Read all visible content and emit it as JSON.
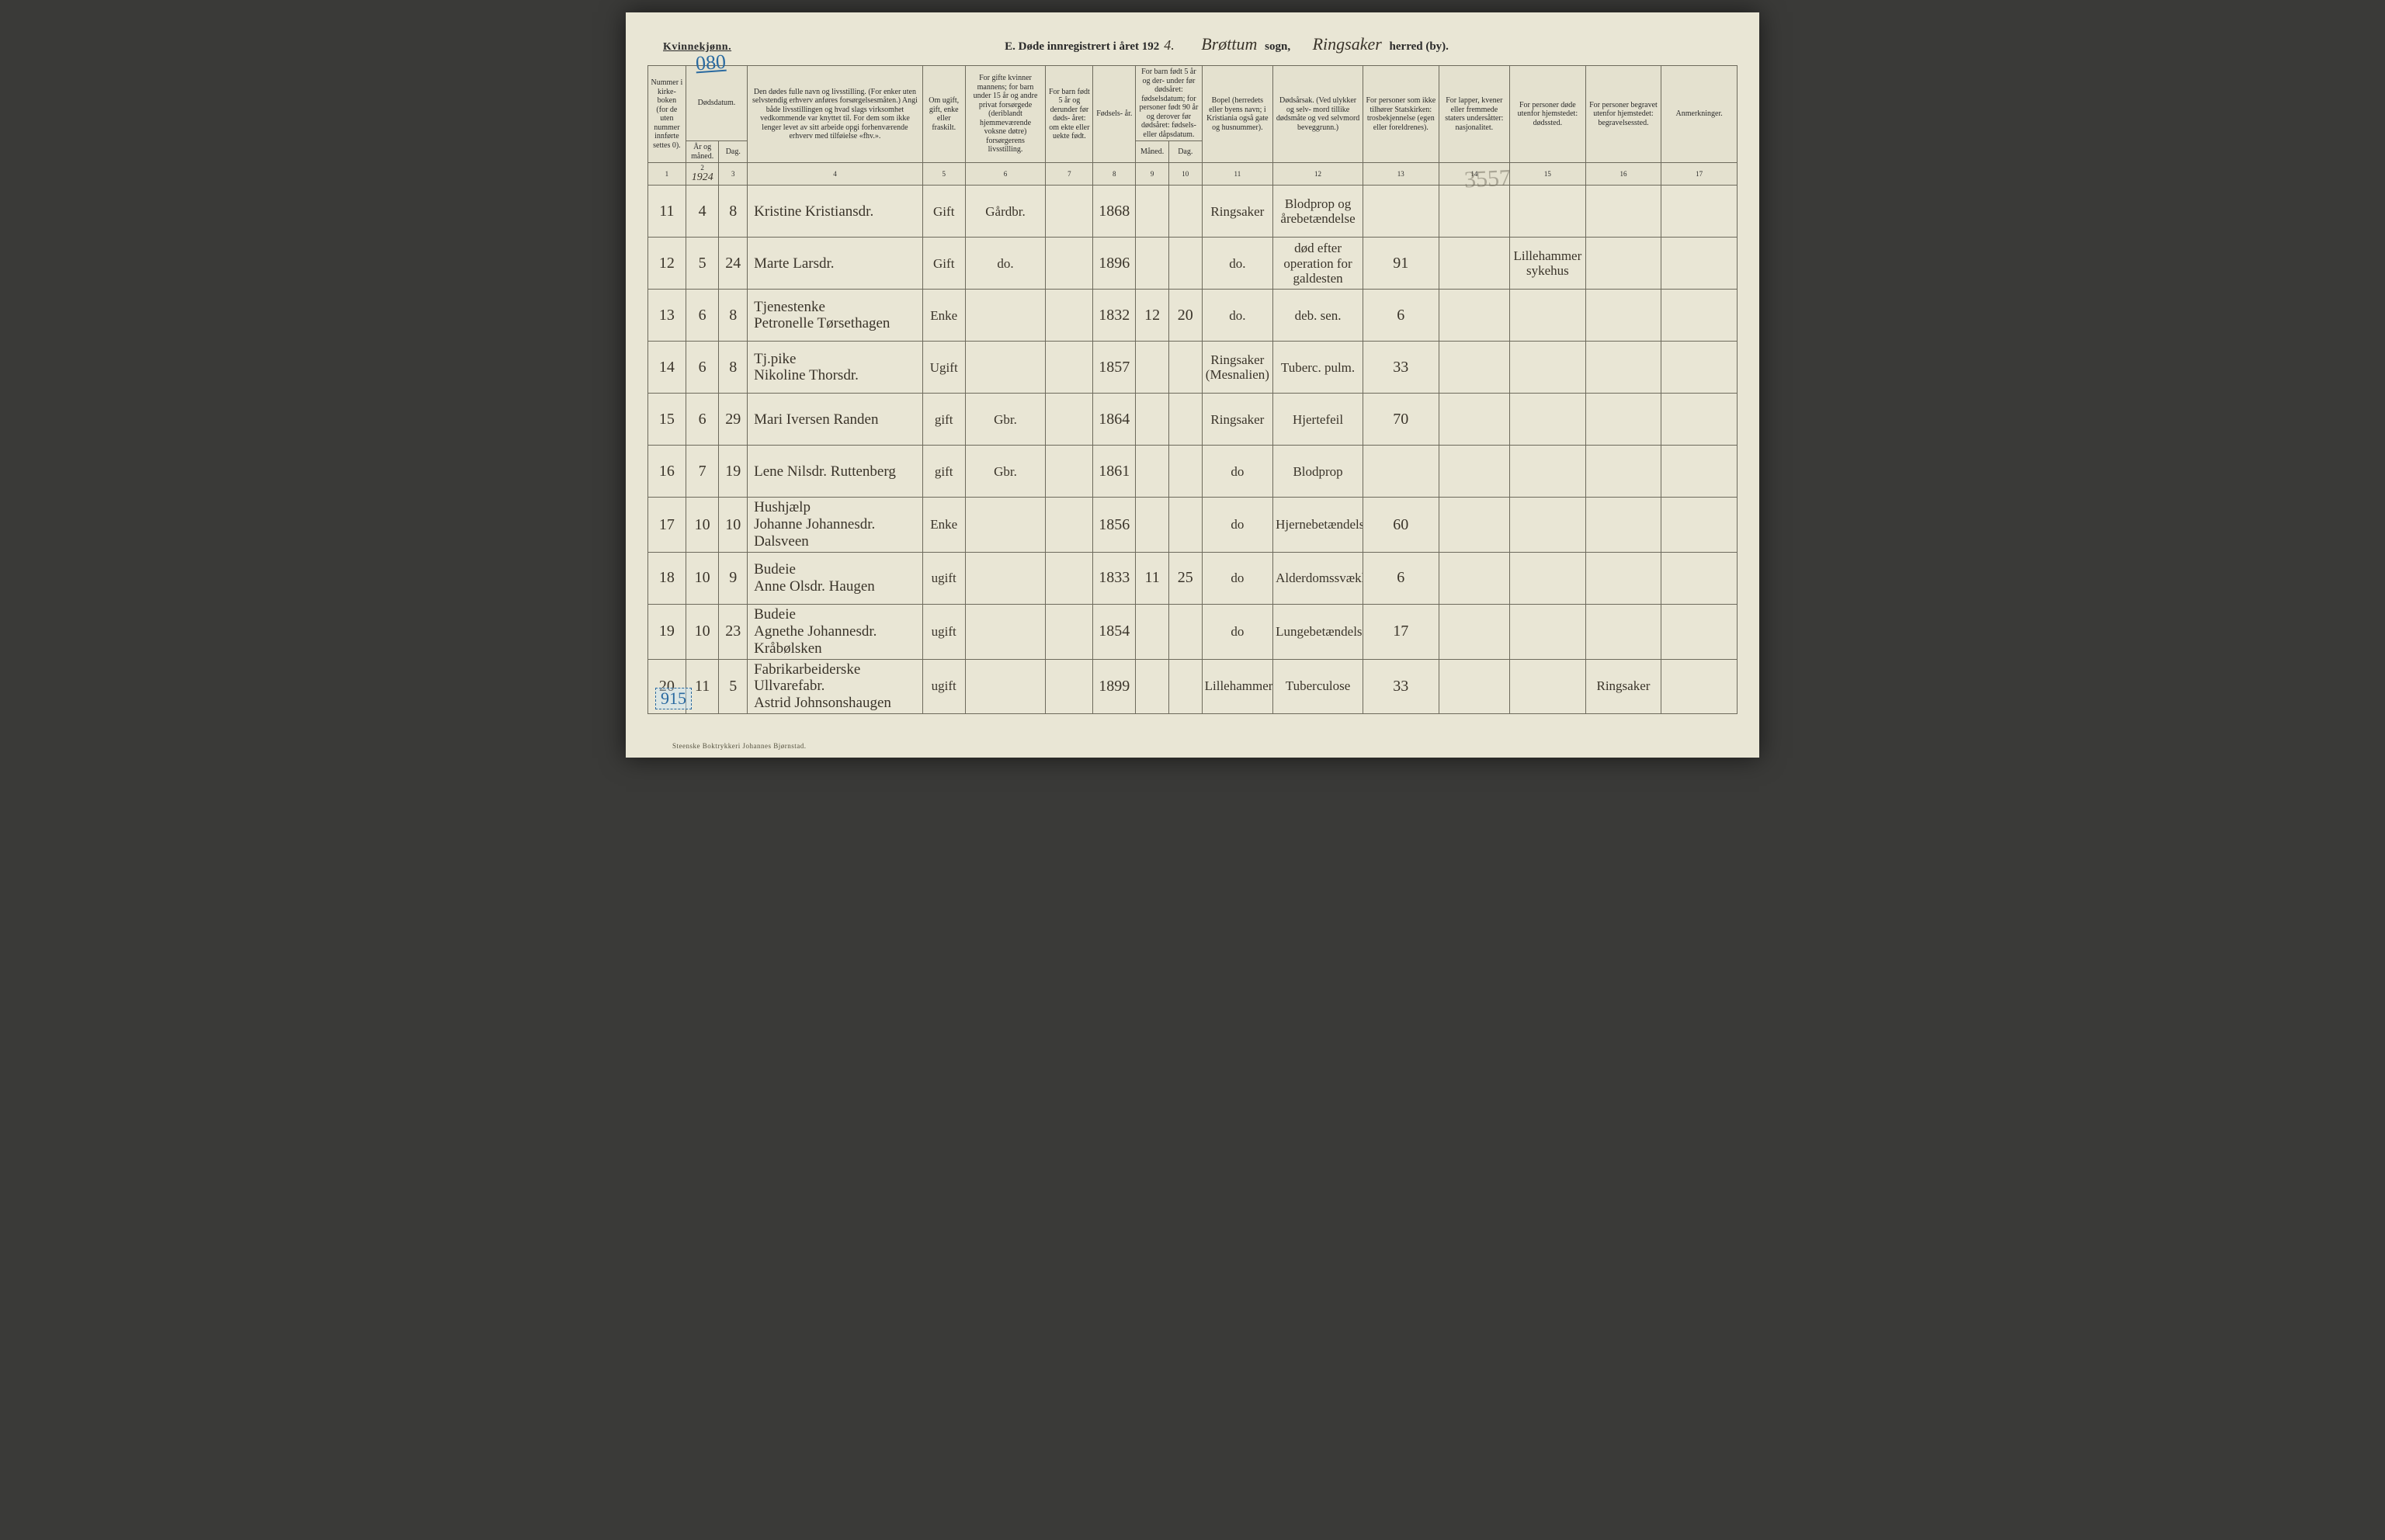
{
  "colors": {
    "page_bg": "#e9e6d5",
    "border": "#6d6a5c",
    "ink_script": "#3a342a",
    "ink_blue": "#2a6aa0",
    "stamp": "rgba(100,95,80,0.45)",
    "outer_bg": "#3a3a38"
  },
  "typography": {
    "header_fontsize": 14,
    "script_fontsize": 22,
    "body_script_fontsize": 20,
    "th_fontsize": 10,
    "colnum_fontsize": 9,
    "footer_fontsize": 9
  },
  "header": {
    "gender": "Kvinnekjønn.",
    "title_prefix": "E.  Døde innregistrert i året 192",
    "year_suffix": "4.",
    "parish_script": "Brøttum",
    "sogn_label": "sogn,",
    "district_script": "Ringsaker",
    "herred_label": "herred (by).",
    "page_no_blue": "080",
    "side_tag": "915",
    "stamp_text": "3557"
  },
  "footer": "Steenske Boktrykkeri Johannes Bjørnstad.",
  "columns": {
    "h1": "Nummer i kirke- boken (for de uten nummer innførte settes 0).",
    "h2_top": "Dødsdatum.",
    "h2a": "År og måned.",
    "h2b": "Dag.",
    "h4": "Den dødes fulle navn og livsstilling. (For enker uten selvstendig erhverv anføres forsørgelsesmåten.) Angi både livsstillingen og hvad slags virksomhet vedkommende var knyttet til. For dem som ikke lenger levet av sitt arbeide opgi forhenværende erhverv med tilføielse «fhv.».",
    "h5": "Om ugift, gift, enke eller fraskilt.",
    "h6": "For gifte kvinner mannens; for barn under 15 år og andre privat forsørgede (deriblandt hjemmeværende voksne døtre) forsørgerens livsstilling.",
    "h7": "For barn født 5 år og derunder før døds- året: om ekte eller uekte født.",
    "h8": "Fødsels- år.",
    "h9_top": "For barn født 5 år og der- under før dødsåret: fødselsdatum; for personer født 90 år og derover før dødsåret: fødsels- eller dåpsdatum.",
    "h9a": "Måned.",
    "h9b": "Dag.",
    "h11": "Bopel (herredets eller byens navn; i Kristiania også gate og husnummer).",
    "h12": "Dødsårsak. (Ved ulykker og selv- mord tillike dødsmåte og ved selvmord beveggrunn.)",
    "h13": "For personer som ikke tilhører Statskirken: trosbekjennelse (egen eller foreldrenes).",
    "h14": "For lapper, kvener eller fremmede staters undersåtter: nasjonalitet.",
    "h15": "For personer døde utenfor hjemstedet: dødssted.",
    "h16": "For personer begravet utenfor hjemstedet: begravelsessted.",
    "h17": "Anmerkninger.",
    "nums": [
      "1",
      "2",
      "3",
      "4",
      "5",
      "6",
      "7",
      "8",
      "9",
      "10",
      "11",
      "12",
      "13",
      "14",
      "15",
      "16",
      "17"
    ]
  },
  "year_in_col2": "1924",
  "rows": [
    {
      "n": "11",
      "m": "4",
      "d": "8",
      "name": "Kristine Kristiansdr.",
      "status": "Gift",
      "occ": "Gårdbr.",
      "c7": "",
      "year": "1868",
      "m2": "",
      "d2": "",
      "res": "Ringsaker",
      "cause": "Blodprop og årebetændelse",
      "c13": "",
      "c14": "",
      "c15": "",
      "c16": "",
      "c17": ""
    },
    {
      "n": "12",
      "m": "5",
      "d": "24",
      "name": "Marte Larsdr.",
      "status": "Gift",
      "occ": "do.",
      "c7": "",
      "year": "1896",
      "m2": "",
      "d2": "",
      "res": "do.",
      "cause": "død efter operation for galdesten",
      "c13": "91",
      "c14": "",
      "c15": "Lillehammer sykehus",
      "c16": "",
      "c17": ""
    },
    {
      "n": "13",
      "m": "6",
      "d": "8",
      "name": "Tjenestenke\nPetronelle Tørsethagen",
      "status": "Enke",
      "occ": "",
      "c7": "",
      "year": "1832",
      "m2": "12",
      "d2": "20",
      "res": "do.",
      "cause": "deb. sen.",
      "c13": "6",
      "c14": "",
      "c15": "",
      "c16": "",
      "c17": ""
    },
    {
      "n": "14",
      "m": "6",
      "d": "8",
      "name": "Tj.pike\nNikoline Thorsdr.",
      "status": "Ugift",
      "occ": "",
      "c7": "",
      "year": "1857",
      "m2": "",
      "d2": "",
      "res": "Ringsaker (Mesnalien)",
      "cause": "Tuberc. pulm.",
      "c13": "33",
      "c14": "",
      "c15": "",
      "c16": "",
      "c17": ""
    },
    {
      "n": "15",
      "m": "6",
      "d": "29",
      "name": "Mari Iversen Randen",
      "status": "gift",
      "occ": "Gbr.",
      "c7": "",
      "year": "1864",
      "m2": "",
      "d2": "",
      "res": "Ringsaker",
      "cause": "Hjertefeil",
      "c13": "70",
      "c14": "",
      "c15": "",
      "c16": "",
      "c17": ""
    },
    {
      "n": "16",
      "m": "7",
      "d": "19",
      "name": "Lene Nilsdr. Ruttenberg",
      "status": "gift",
      "occ": "Gbr.",
      "c7": "",
      "year": "1861",
      "m2": "",
      "d2": "",
      "res": "do",
      "cause": "Blodprop",
      "c13": "",
      "c14": "",
      "c15": "",
      "c16": "",
      "c17": ""
    },
    {
      "n": "17",
      "m": "10",
      "d": "10",
      "name": "Hushjælp\nJohanne Johannesdr. Dalsveen",
      "status": "Enke",
      "occ": "",
      "c7": "",
      "year": "1856",
      "m2": "",
      "d2": "",
      "res": "do",
      "cause": "Hjernebetændelse",
      "c13": "60",
      "c14": "",
      "c15": "",
      "c16": "",
      "c17": ""
    },
    {
      "n": "18",
      "m": "10",
      "d": "9",
      "name": "Budeie\nAnne Olsdr. Haugen",
      "status": "ugift",
      "occ": "",
      "c7": "",
      "year": "1833",
      "m2": "11",
      "d2": "25",
      "res": "do",
      "cause": "Alderdomssvækkelse",
      "c13": "6",
      "c14": "",
      "c15": "",
      "c16": "",
      "c17": ""
    },
    {
      "n": "19",
      "m": "10",
      "d": "23",
      "name": "Budeie\nAgnethe Johannesdr. Kråbølsken",
      "status": "ugift",
      "occ": "",
      "c7": "",
      "year": "1854",
      "m2": "",
      "d2": "",
      "res": "do",
      "cause": "Lungebetændelse",
      "c13": "17",
      "c14": "",
      "c15": "",
      "c16": "",
      "c17": ""
    },
    {
      "n": "20",
      "m": "11",
      "d": "5",
      "name": "Fabrikarbeiderske Ullvarefabr.\nAstrid Johnsonshaugen",
      "status": "ugift",
      "occ": "",
      "c7": "",
      "year": "1899",
      "m2": "",
      "d2": "",
      "res": "Lillehammer",
      "cause": "Tuberculose",
      "c13": "33",
      "c14": "",
      "c15": "",
      "c16": "Ringsaker",
      "c17": ""
    }
  ]
}
